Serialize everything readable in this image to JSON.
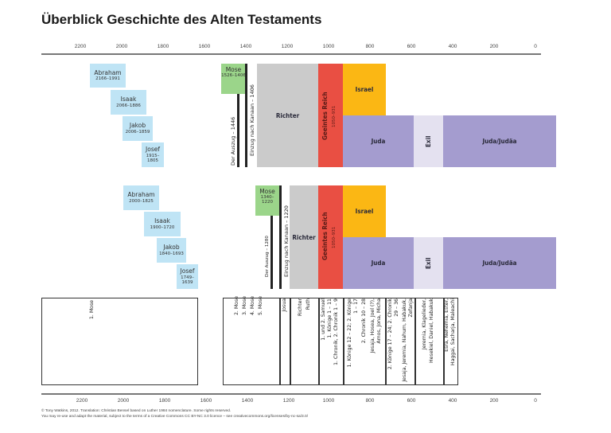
{
  "title": "Überblick Geschichte des Alten Testaments",
  "axis": {
    "ticks": [
      "2200",
      "2000",
      "1800",
      "1600",
      "1400",
      "1200",
      "1000",
      "800",
      "600",
      "400",
      "200",
      "0"
    ],
    "tick_years": [
      2200,
      2000,
      1800,
      1600,
      1400,
      1200,
      1000,
      800,
      600,
      400,
      200,
      0
    ]
  },
  "upper_timeline": {
    "patriarchs": [
      {
        "name": "Abraham",
        "years": "2166–1991"
      },
      {
        "name": "Isaak",
        "years": "2066–1886"
      },
      {
        "name": "Jakob",
        "years": "2006–1859"
      },
      {
        "name": "Josef",
        "years": "1915–1805"
      }
    ],
    "mose": {
      "name": "Mose",
      "years": "1526–1406"
    },
    "exodus": "Der Auszug – 1446",
    "conquest": "Einzug nach Kanaan – 1406",
    "richter": "Richter",
    "united_kingdom": {
      "name": "Geeintes Reich",
      "years": "1050–931"
    },
    "israel": "Israel",
    "juda": "Juda",
    "exil": "Exil",
    "juda_judaea": "Juda/Judäa"
  },
  "lower_timeline": {
    "patriarchs": [
      {
        "name": "Abraham",
        "years": "2000–1825"
      },
      {
        "name": "Isaak",
        "years": "1900–1720"
      },
      {
        "name": "Jakob",
        "years": "1840–1693"
      },
      {
        "name": "Josef",
        "years": "1749–1639"
      }
    ],
    "mose": {
      "name": "Mose",
      "years": "1340–1220"
    },
    "exodus": "Der Auszug – 1280",
    "conquest": "Einzug nach Kanaan – 1220",
    "richter": "Richter",
    "united_kingdom": {
      "name": "Geeintes Reich",
      "years": "1050–931"
    },
    "israel": "Israel",
    "juda": "Juda",
    "exil": "Exil",
    "juda_judaea": "Juda/Judäa"
  },
  "books": {
    "genesis": "1. Mose",
    "pentateuch": [
      "2. Mose",
      "3. Mose",
      "4. Mose",
      "5. Mose"
    ],
    "josua": "Josua",
    "richter_ruth": [
      "Richter",
      "Ruth"
    ],
    "samuel_kings": [
      "1. und 2. Samuel",
      "1. Könige 1 – 11",
      "1. Chronik, 2. Chronik 1 – 9"
    ],
    "kings_divided": [
      "1. Könige 12 – 22; 2. Könige",
      "1 – 17",
      "2. Chronik 10 – 28",
      "Jesaja, Hosea, Joel (?),",
      "Amos, Jona, Micha"
    ],
    "kings_late": [
      "2. Könige 17 – 24; 2. Chronik",
      "29 – 36",
      "Jesaja, Jeremia, Nahum, Habakuk,",
      "Zefanja"
    ],
    "exile_books": [
      "Jeremia, Klagelieder,",
      "Hesekiel, Daniel, Habakuk"
    ],
    "post_exile": [
      "Esra, Nehemia, Ester,",
      "Haggai, Sacharja, Maleachi"
    ]
  },
  "footer": {
    "line1": "© Tony Watkins, 2012. Translation: Christian Bensel based on Luther 1984 nomenclature. Some rights reserved.",
    "line2": "You may re-use and adapt the material, subject to the terms of a Creative Commons CC BY-NC 3.0 licence – see creativecommons.org/licenses/by-nc-sa/3.0/"
  },
  "colors": {
    "patriarch": "#bfe4f5",
    "mose": "#9bd58a",
    "richter": "#cbcbcb",
    "reich": "#e94f43",
    "israel": "#fbb714",
    "juda": "#a49ccf",
    "exil": "#e4e1f0"
  }
}
